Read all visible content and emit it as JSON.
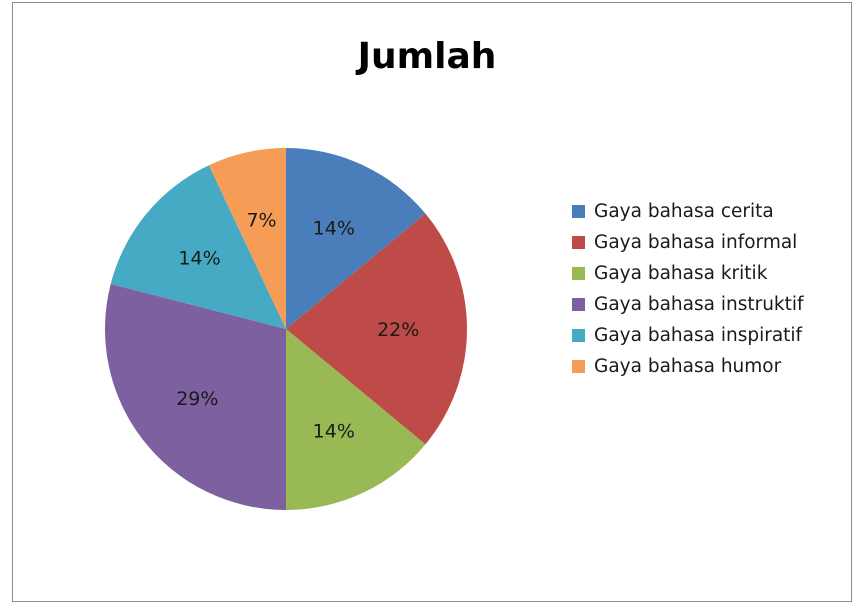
{
  "chart_data": {
    "type": "pie",
    "title": "Jumlah",
    "categories": [
      "Gaya bahasa cerita",
      "Gaya bahasa informal",
      "Gaya bahasa kritik",
      "Gaya bahasa instruktif",
      "Gaya bahasa inspiratif",
      "Gaya bahasa humor"
    ],
    "values": [
      14,
      22,
      14,
      29,
      14,
      7
    ],
    "labels": [
      "14%",
      "22%",
      "14%",
      "29%",
      "14%",
      "7%"
    ],
    "colors": [
      "#4a7ebb",
      "#be4b48",
      "#98b954",
      "#7d60a0",
      "#46aac5",
      "#f59d56"
    ],
    "legend_position": "right"
  }
}
